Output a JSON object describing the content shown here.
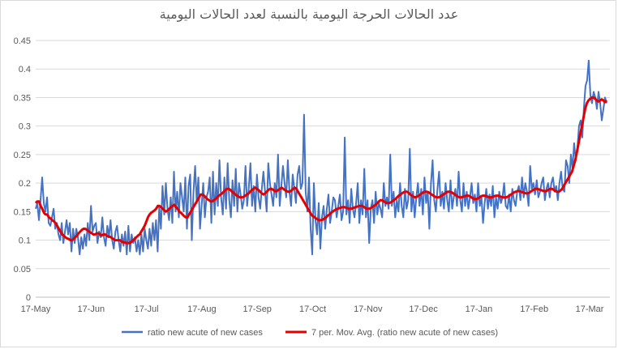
{
  "chart_data": {
    "type": "line",
    "title": "عدد الحالات الحرجة اليومية بالنسبة لعدد الحالات اليومية",
    "xlabel": "",
    "ylabel": "",
    "ylim": [
      0,
      0.45
    ],
    "yticks": [
      "0",
      "0.05",
      "0.1",
      "0.15",
      "0.2",
      "0.25",
      "0.3",
      "0.35",
      "0.4",
      "0.45"
    ],
    "xticks": [
      "17-May",
      "17-Jun",
      "17-Jul",
      "17-Aug",
      "17-Sep",
      "17-Oct",
      "17-Nov",
      "17-Dec",
      "17-Jan",
      "17-Feb",
      "17-Mar"
    ],
    "grid": true,
    "legend_position": "bottom",
    "series": [
      {
        "name": "ratio new acute of new cases",
        "color": "#4472C4",
        "values": [
          0.155,
          0.165,
          0.135,
          0.17,
          0.21,
          0.165,
          0.15,
          0.175,
          0.13,
          0.125,
          0.14,
          0.155,
          0.12,
          0.13,
          0.11,
          0.1,
          0.13,
          0.095,
          0.115,
          0.135,
          0.11,
          0.13,
          0.08,
          0.12,
          0.095,
          0.12,
          0.105,
          0.075,
          0.105,
          0.085,
          0.11,
          0.09,
          0.13,
          0.1,
          0.16,
          0.115,
          0.125,
          0.13,
          0.095,
          0.115,
          0.105,
          0.14,
          0.105,
          0.09,
          0.125,
          0.105,
          0.135,
          0.1,
          0.085,
          0.115,
          0.125,
          0.1,
          0.08,
          0.11,
          0.09,
          0.115,
          0.075,
          0.125,
          0.08,
          0.11,
          0.095,
          0.105,
          0.08,
          0.1,
          0.075,
          0.11,
          0.08,
          0.12,
          0.1,
          0.085,
          0.12,
          0.09,
          0.13,
          0.1,
          0.135,
          0.08,
          0.16,
          0.12,
          0.195,
          0.145,
          0.2,
          0.155,
          0.135,
          0.175,
          0.13,
          0.22,
          0.15,
          0.185,
          0.14,
          0.2,
          0.175,
          0.15,
          0.21,
          0.12,
          0.195,
          0.215,
          0.1,
          0.185,
          0.23,
          0.165,
          0.21,
          0.12,
          0.16,
          0.2,
          0.14,
          0.175,
          0.185,
          0.21,
          0.13,
          0.22,
          0.145,
          0.2,
          0.16,
          0.24,
          0.175,
          0.145,
          0.21,
          0.155,
          0.235,
          0.17,
          0.14,
          0.205,
          0.16,
          0.225,
          0.15,
          0.2,
          0.18,
          0.155,
          0.17,
          0.23,
          0.16,
          0.19,
          0.235,
          0.16,
          0.195,
          0.15,
          0.215,
          0.175,
          0.155,
          0.19,
          0.22,
          0.185,
          0.15,
          0.235,
          0.2,
          0.18,
          0.16,
          0.2,
          0.175,
          0.25,
          0.16,
          0.195,
          0.23,
          0.2,
          0.175,
          0.24,
          0.185,
          0.16,
          0.215,
          0.19,
          0.165,
          0.215,
          0.23,
          0.19,
          0.2,
          0.32,
          0.185,
          0.15,
          0.21,
          0.12,
          0.075,
          0.2,
          0.135,
          0.11,
          0.165,
          0.085,
          0.14,
          0.16,
          0.12,
          0.155,
          0.18,
          0.13,
          0.15,
          0.175,
          0.17,
          0.14,
          0.16,
          0.18,
          0.135,
          0.15,
          0.28,
          0.145,
          0.17,
          0.13,
          0.19,
          0.155,
          0.14,
          0.165,
          0.2,
          0.13,
          0.17,
          0.145,
          0.225,
          0.14,
          0.17,
          0.095,
          0.155,
          0.17,
          0.13,
          0.185,
          0.145,
          0.165,
          0.155,
          0.14,
          0.2,
          0.16,
          0.175,
          0.155,
          0.25,
          0.16,
          0.185,
          0.14,
          0.17,
          0.15,
          0.2,
          0.16,
          0.14,
          0.19,
          0.155,
          0.17,
          0.26,
          0.15,
          0.185,
          0.14,
          0.175,
          0.2,
          0.16,
          0.19,
          0.145,
          0.21,
          0.165,
          0.185,
          0.12,
          0.2,
          0.24,
          0.17,
          0.15,
          0.19,
          0.22,
          0.16,
          0.185,
          0.155,
          0.2,
          0.17,
          0.15,
          0.205,
          0.155,
          0.175,
          0.19,
          0.16,
          0.22,
          0.17,
          0.15,
          0.2,
          0.16,
          0.185,
          0.155,
          0.175,
          0.2,
          0.165,
          0.18,
          0.15,
          0.2,
          0.16,
          0.175,
          0.13,
          0.165,
          0.19,
          0.155,
          0.18,
          0.16,
          0.195,
          0.14,
          0.175,
          0.155,
          0.185,
          0.165,
          0.175,
          0.2,
          0.16,
          0.155,
          0.18,
          0.15,
          0.19,
          0.17,
          0.16,
          0.185,
          0.195,
          0.17,
          0.21,
          0.175,
          0.2,
          0.185,
          0.16,
          0.23,
          0.19,
          0.2,
          0.18,
          0.205,
          0.175,
          0.185,
          0.2,
          0.21,
          0.17,
          0.19,
          0.2,
          0.175,
          0.2,
          0.21,
          0.185,
          0.195,
          0.17,
          0.2,
          0.22,
          0.19,
          0.185,
          0.24,
          0.23,
          0.2,
          0.25,
          0.225,
          0.27,
          0.24,
          0.26,
          0.3,
          0.31,
          0.28,
          0.33,
          0.37,
          0.38,
          0.415,
          0.355,
          0.34,
          0.36,
          0.35,
          0.33,
          0.36,
          0.34,
          0.31,
          0.33,
          0.35,
          0.34
        ]
      },
      {
        "name": "7 per. Mov. Avg. (ratio new acute of new cases)",
        "color": "#E40000",
        "values": [
          0.165,
          0.168,
          0.168,
          0.16,
          0.155,
          0.148,
          0.145,
          0.145,
          0.14,
          0.138,
          0.135,
          0.133,
          0.13,
          0.125,
          0.12,
          0.115,
          0.11,
          0.108,
          0.105,
          0.103,
          0.102,
          0.1,
          0.1,
          0.102,
          0.105,
          0.108,
          0.112,
          0.115,
          0.118,
          0.12,
          0.12,
          0.118,
          0.116,
          0.114,
          0.112,
          0.11,
          0.11,
          0.112,
          0.112,
          0.11,
          0.108,
          0.11,
          0.11,
          0.108,
          0.106,
          0.106,
          0.104,
          0.102,
          0.1,
          0.1,
          0.1,
          0.1,
          0.098,
          0.096,
          0.096,
          0.095,
          0.095,
          0.095,
          0.097,
          0.1,
          0.102,
          0.105,
          0.108,
          0.11,
          0.115,
          0.12,
          0.125,
          0.132,
          0.14,
          0.145,
          0.148,
          0.15,
          0.152,
          0.155,
          0.16,
          0.16,
          0.158,
          0.155,
          0.152,
          0.15,
          0.152,
          0.155,
          0.158,
          0.16,
          0.162,
          0.158,
          0.155,
          0.15,
          0.148,
          0.145,
          0.142,
          0.14,
          0.14,
          0.145,
          0.15,
          0.155,
          0.16,
          0.165,
          0.17,
          0.175,
          0.18,
          0.18,
          0.178,
          0.175,
          0.172,
          0.17,
          0.168,
          0.168,
          0.17,
          0.172,
          0.175,
          0.178,
          0.18,
          0.182,
          0.185,
          0.188,
          0.19,
          0.19,
          0.188,
          0.185,
          0.183,
          0.18,
          0.178,
          0.176,
          0.175,
          0.175,
          0.176,
          0.178,
          0.18,
          0.182,
          0.185,
          0.188,
          0.19,
          0.192,
          0.19,
          0.188,
          0.185,
          0.182,
          0.18,
          0.182,
          0.185,
          0.188,
          0.19,
          0.19,
          0.188,
          0.186,
          0.186,
          0.188,
          0.19,
          0.192,
          0.19,
          0.188,
          0.186,
          0.185,
          0.185,
          0.187,
          0.19,
          0.192,
          0.19,
          0.185,
          0.18,
          0.175,
          0.17,
          0.165,
          0.16,
          0.155,
          0.15,
          0.145,
          0.142,
          0.14,
          0.138,
          0.136,
          0.135,
          0.135,
          0.136,
          0.138,
          0.14,
          0.143,
          0.145,
          0.148,
          0.15,
          0.152,
          0.154,
          0.155,
          0.156,
          0.157,
          0.158,
          0.158,
          0.157,
          0.156,
          0.155,
          0.155,
          0.156,
          0.157,
          0.158,
          0.159,
          0.16,
          0.16,
          0.16,
          0.158,
          0.156,
          0.155,
          0.155,
          0.156,
          0.158,
          0.16,
          0.162,
          0.165,
          0.168,
          0.17,
          0.17,
          0.168,
          0.166,
          0.165,
          0.165,
          0.166,
          0.168,
          0.17,
          0.172,
          0.175,
          0.178,
          0.18,
          0.182,
          0.184,
          0.185,
          0.185,
          0.183,
          0.18,
          0.178,
          0.176,
          0.175,
          0.176,
          0.178,
          0.18,
          0.182,
          0.184,
          0.185,
          0.185,
          0.184,
          0.182,
          0.18,
          0.178,
          0.176,
          0.175,
          0.175,
          0.176,
          0.178,
          0.18,
          0.182,
          0.184,
          0.185,
          0.185,
          0.184,
          0.182,
          0.18,
          0.178,
          0.176,
          0.175,
          0.175,
          0.176,
          0.177,
          0.178,
          0.178,
          0.177,
          0.175,
          0.173,
          0.172,
          0.172,
          0.173,
          0.175,
          0.177,
          0.178,
          0.178,
          0.177,
          0.176,
          0.175,
          0.175,
          0.176,
          0.177,
          0.178,
          0.178,
          0.177,
          0.176,
          0.175,
          0.175,
          0.175,
          0.176,
          0.178,
          0.18,
          0.182,
          0.184,
          0.185,
          0.186,
          0.186,
          0.185,
          0.184,
          0.183,
          0.182,
          0.182,
          0.183,
          0.185,
          0.187,
          0.189,
          0.19,
          0.19,
          0.189,
          0.188,
          0.187,
          0.186,
          0.186,
          0.187,
          0.189,
          0.19,
          0.19,
          0.188,
          0.186,
          0.185,
          0.185,
          0.187,
          0.19,
          0.195,
          0.2,
          0.205,
          0.21,
          0.215,
          0.22,
          0.23,
          0.24,
          0.255,
          0.27,
          0.285,
          0.3,
          0.315,
          0.33,
          0.34,
          0.345,
          0.348,
          0.35,
          0.35,
          0.348,
          0.345,
          0.343,
          0.345,
          0.347,
          0.345,
          0.342,
          0.345
        ]
      }
    ]
  }
}
